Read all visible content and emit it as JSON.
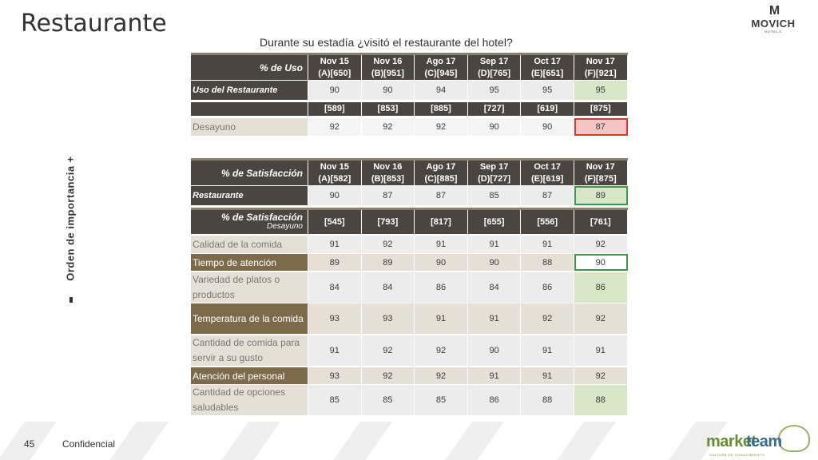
{
  "title": "Restaurante",
  "logo": {
    "mark": "M",
    "word": "MOVICH",
    "sub": "HOTELS"
  },
  "question": "Durante su estadía ¿visitó el restaurante del hotel?",
  "side_label": "Orden de importancia +",
  "usage": {
    "header_label": "% de Uso",
    "columns": [
      {
        "month": "Nov 15",
        "code": "(A)[650]"
      },
      {
        "month": "Nov 16",
        "code": "(B)[951]"
      },
      {
        "month": "Ago 17",
        "code": "(C)[945]"
      },
      {
        "month": "Sep 17",
        "code": "(D)[765]"
      },
      {
        "month": "Oct 17",
        "code": "(E)[651]"
      },
      {
        "month": "Nov 17",
        "code": "(F)[921]"
      }
    ],
    "main_row": {
      "label": "Uso del Restaurante",
      "values": [
        "90",
        "90",
        "94",
        "95",
        "95",
        "95"
      ]
    },
    "sub_header": [
      "[589]",
      "[853]",
      "[885]",
      "[727]",
      "[619]",
      "[875]"
    ],
    "sub_row": {
      "label": "Desayuno",
      "values": [
        "92",
        "92",
        "92",
        "90",
        "90",
        "87"
      ]
    }
  },
  "satisfaction": {
    "header_label": "% de Satisfacción",
    "columns": [
      {
        "month": "Nov 15",
        "code": "(A)[582]"
      },
      {
        "month": "Nov 16",
        "code": "(B)[853]"
      },
      {
        "month": "Ago 17",
        "code": "(C)[885]"
      },
      {
        "month": "Sep 17",
        "code": "(D)[727]"
      },
      {
        "month": "Oct 17",
        "code": "(E)[619]"
      },
      {
        "month": "Nov 17",
        "code": "(F)[875]"
      }
    ],
    "main_row": {
      "label": "Restaurante",
      "values": [
        "90",
        "87",
        "87",
        "85",
        "87",
        "89"
      ]
    },
    "sub_header_label": "% de Satisfacción",
    "sub_header_sublabel": "Desayuno",
    "sub_header": [
      "[545]",
      "[793]",
      "[817]",
      "[655]",
      "[556]",
      "[761]"
    ],
    "rows": [
      {
        "label": "Calidad de la comida",
        "values": [
          "91",
          "92",
          "91",
          "91",
          "91",
          "92"
        ]
      },
      {
        "label": "Tiempo de atención",
        "values": [
          "89",
          "89",
          "90",
          "90",
          "88",
          "90"
        ]
      },
      {
        "label": "Variedad de platos o productos",
        "values": [
          "84",
          "84",
          "86",
          "84",
          "86",
          "86"
        ]
      },
      {
        "label": "Temperatura de la comida",
        "values": [
          "93",
          "93",
          "91",
          "91",
          "92",
          "92"
        ]
      },
      {
        "label": "Cantidad de comida para servir a su gusto",
        "values": [
          "91",
          "92",
          "92",
          "90",
          "91",
          "91"
        ]
      },
      {
        "label": "Atención del personal",
        "values": [
          "93",
          "92",
          "92",
          "91",
          "91",
          "92"
        ]
      },
      {
        "label": "Cantidad de opciones saludables",
        "values": [
          "85",
          "85",
          "85",
          "86",
          "88",
          "88"
        ]
      }
    ]
  },
  "footer": {
    "page": "45",
    "confidential": "Confidencial"
  },
  "brand": {
    "word1": "market",
    "word2": "team",
    "tagline": "CULTURA DE CONOCIMIENTO"
  },
  "colors": {
    "header_bg": "#4a4540",
    "accent_green": "#3a9a4a",
    "accent_red": "#d23a3a",
    "beige": "#e6dfd6",
    "brown": "#7d6a4a"
  }
}
